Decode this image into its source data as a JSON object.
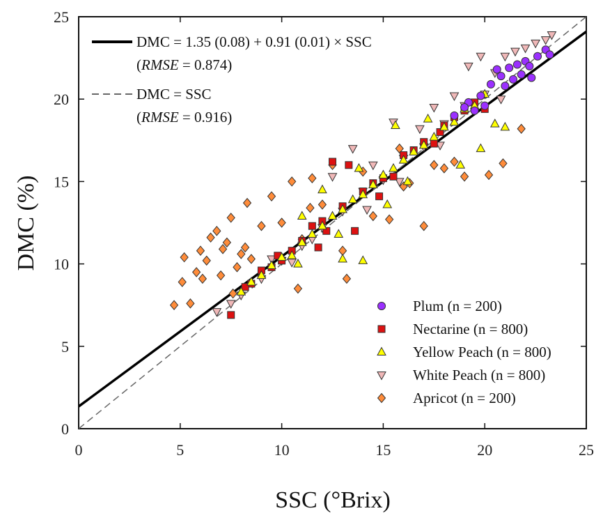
{
  "chart_data": {
    "type": "scatter",
    "title": "",
    "xlabel": "SSC (°Brix)",
    "ylabel": "DMC (%)",
    "xlim": [
      0,
      25
    ],
    "ylim": [
      0,
      25
    ],
    "xticks": [
      0,
      5,
      10,
      15,
      20,
      25
    ],
    "yticks": [
      0,
      5,
      10,
      15,
      20,
      25
    ],
    "grid": false,
    "legend_position": "bottom-right",
    "lines": [
      {
        "name": "fit",
        "style": "solid",
        "color": "#000000",
        "intercept": 1.35,
        "slope": 0.91,
        "label": "DMC = 1.35 (0.08) + 0.91 (0.01) × SSC",
        "metric_name": "RMSE",
        "metric_value": "= 0.874"
      },
      {
        "name": "identity",
        "style": "dashed",
        "color": "#666666",
        "intercept": 0,
        "slope": 1,
        "label": "DMC = SSC",
        "metric_name": "RMSE",
        "metric_value": "= 0.916"
      }
    ],
    "series": [
      {
        "name": "Plum (n = 200)",
        "marker": "circle",
        "color": "#9b30ff",
        "points": [
          [
            18.5,
            19.0
          ],
          [
            19.2,
            19.8
          ],
          [
            19.8,
            20.2
          ],
          [
            20.3,
            20.9
          ],
          [
            20.8,
            21.4
          ],
          [
            21.2,
            21.9
          ],
          [
            21.6,
            22.1
          ],
          [
            22.0,
            22.3
          ],
          [
            22.3,
            21.3
          ],
          [
            22.6,
            22.6
          ],
          [
            23.0,
            23.0
          ],
          [
            23.2,
            22.7
          ],
          [
            20.0,
            19.6
          ],
          [
            21.0,
            20.8
          ],
          [
            19.5,
            19.3
          ],
          [
            21.8,
            21.5
          ],
          [
            20.6,
            21.8
          ],
          [
            19.0,
            19.5
          ],
          [
            22.2,
            22.0
          ],
          [
            21.4,
            21.2
          ]
        ]
      },
      {
        "name": "Nectarine (n = 800)",
        "marker": "square",
        "color": "#dd1111",
        "points": [
          [
            7.5,
            6.9
          ],
          [
            8.5,
            8.8
          ],
          [
            9.0,
            9.6
          ],
          [
            9.5,
            9.8
          ],
          [
            10.0,
            10.2
          ],
          [
            10.5,
            10.8
          ],
          [
            11.0,
            11.4
          ],
          [
            11.5,
            12.3
          ],
          [
            12.0,
            12.6
          ],
          [
            12.5,
            16.2
          ],
          [
            13.0,
            13.5
          ],
          [
            13.3,
            16.0
          ],
          [
            13.6,
            12.0
          ],
          [
            14.0,
            14.4
          ],
          [
            14.5,
            14.9
          ],
          [
            15.0,
            15.2
          ],
          [
            15.5,
            15.3
          ],
          [
            16.0,
            16.6
          ],
          [
            16.5,
            16.9
          ],
          [
            17.0,
            17.4
          ],
          [
            17.5,
            17.3
          ],
          [
            18.0,
            18.4
          ],
          [
            18.5,
            18.9
          ],
          [
            19.0,
            19.3
          ],
          [
            19.5,
            19.8
          ],
          [
            20.0,
            19.4
          ],
          [
            8.2,
            8.6
          ],
          [
            9.8,
            10.5
          ],
          [
            12.2,
            12.0
          ],
          [
            14.8,
            14.1
          ],
          [
            17.8,
            18.0
          ],
          [
            11.8,
            11.0
          ]
        ]
      },
      {
        "name": "Yellow Peach (n = 800)",
        "marker": "triangle-up",
        "color": "#ffff00",
        "points": [
          [
            8.0,
            8.3
          ],
          [
            8.5,
            8.9
          ],
          [
            9.0,
            9.3
          ],
          [
            9.5,
            9.9
          ],
          [
            10.0,
            10.4
          ],
          [
            10.5,
            10.5
          ],
          [
            11.0,
            11.3
          ],
          [
            11.5,
            11.8
          ],
          [
            12.0,
            12.3
          ],
          [
            12.5,
            12.9
          ],
          [
            13.0,
            13.3
          ],
          [
            13.5,
            13.9
          ],
          [
            14.0,
            14.2
          ],
          [
            14.5,
            14.8
          ],
          [
            15.0,
            15.4
          ],
          [
            15.5,
            15.8
          ],
          [
            16.0,
            16.3
          ],
          [
            16.5,
            16.8
          ],
          [
            17.0,
            17.2
          ],
          [
            17.5,
            17.7
          ],
          [
            18.0,
            18.3
          ],
          [
            18.5,
            18.6
          ],
          [
            19.0,
            19.4
          ],
          [
            19.5,
            19.6
          ],
          [
            20.0,
            20.3
          ],
          [
            20.5,
            18.5
          ],
          [
            21.0,
            18.3
          ],
          [
            19.8,
            17.0
          ],
          [
            18.8,
            16.0
          ],
          [
            13.0,
            10.3
          ],
          [
            14.0,
            10.2
          ],
          [
            15.6,
            18.4
          ],
          [
            12.0,
            14.5
          ],
          [
            11.0,
            12.9
          ],
          [
            16.2,
            15.0
          ],
          [
            17.2,
            18.8
          ],
          [
            13.8,
            15.8
          ],
          [
            15.2,
            13.6
          ],
          [
            10.8,
            10.0
          ],
          [
            12.8,
            11.8
          ]
        ]
      },
      {
        "name": "White Peach (n = 800)",
        "marker": "triangle-down",
        "color": "#f0b8b8",
        "points": [
          [
            6.8,
            7.1
          ],
          [
            7.5,
            7.6
          ],
          [
            8.0,
            8.1
          ],
          [
            9.0,
            9.1
          ],
          [
            10.0,
            10.2
          ],
          [
            11.0,
            11.1
          ],
          [
            12.0,
            12.2
          ],
          [
            13.0,
            13.2
          ],
          [
            14.0,
            14.4
          ],
          [
            15.0,
            15.1
          ],
          [
            16.0,
            16.4
          ],
          [
            17.0,
            17.1
          ],
          [
            18.0,
            18.5
          ],
          [
            19.0,
            19.6
          ],
          [
            20.0,
            20.3
          ],
          [
            20.5,
            21.6
          ],
          [
            21.0,
            22.6
          ],
          [
            21.5,
            22.9
          ],
          [
            22.0,
            23.1
          ],
          [
            22.5,
            23.4
          ],
          [
            23.0,
            23.6
          ],
          [
            23.3,
            23.9
          ],
          [
            19.2,
            22.0
          ],
          [
            18.5,
            20.2
          ],
          [
            17.5,
            19.5
          ],
          [
            16.8,
            18.2
          ],
          [
            15.5,
            18.6
          ],
          [
            14.5,
            16.0
          ],
          [
            13.5,
            17.0
          ],
          [
            12.5,
            15.3
          ],
          [
            11.5,
            11.5
          ],
          [
            10.5,
            10.1
          ],
          [
            9.5,
            10.3
          ],
          [
            19.8,
            22.6
          ],
          [
            20.8,
            20.0
          ],
          [
            17.8,
            17.2
          ],
          [
            15.8,
            15.0
          ],
          [
            14.2,
            13.3
          ]
        ]
      },
      {
        "name": "Apricot (n = 200)",
        "marker": "diamond",
        "color": "#ff8c3a",
        "points": [
          [
            4.7,
            7.5
          ],
          [
            5.1,
            8.9
          ],
          [
            5.2,
            10.4
          ],
          [
            5.5,
            7.6
          ],
          [
            5.8,
            9.5
          ],
          [
            6.0,
            10.8
          ],
          [
            6.1,
            9.1
          ],
          [
            6.3,
            10.2
          ],
          [
            6.5,
            11.6
          ],
          [
            6.8,
            12.0
          ],
          [
            7.0,
            9.3
          ],
          [
            7.1,
            10.9
          ],
          [
            7.3,
            11.3
          ],
          [
            7.5,
            12.8
          ],
          [
            7.6,
            8.2
          ],
          [
            7.8,
            9.8
          ],
          [
            8.0,
            10.6
          ],
          [
            8.2,
            11.0
          ],
          [
            8.3,
            13.7
          ],
          [
            8.5,
            10.3
          ],
          [
            9.0,
            12.3
          ],
          [
            9.5,
            14.1
          ],
          [
            10.0,
            12.5
          ],
          [
            10.5,
            15.0
          ],
          [
            10.8,
            8.5
          ],
          [
            11.0,
            11.5
          ],
          [
            11.4,
            13.4
          ],
          [
            11.5,
            15.2
          ],
          [
            12.0,
            13.6
          ],
          [
            12.5,
            16.0
          ],
          [
            13.0,
            10.8
          ],
          [
            13.2,
            9.1
          ],
          [
            14.0,
            15.6
          ],
          [
            14.5,
            12.9
          ],
          [
            15.3,
            12.7
          ],
          [
            16.0,
            14.7
          ],
          [
            16.3,
            14.9
          ],
          [
            17.0,
            12.3
          ],
          [
            17.5,
            16.0
          ],
          [
            18.0,
            15.8
          ],
          [
            18.5,
            16.2
          ],
          [
            19.0,
            15.3
          ],
          [
            20.2,
            15.4
          ],
          [
            20.9,
            16.1
          ],
          [
            21.8,
            18.2
          ],
          [
            15.8,
            17.0
          ]
        ]
      }
    ]
  }
}
